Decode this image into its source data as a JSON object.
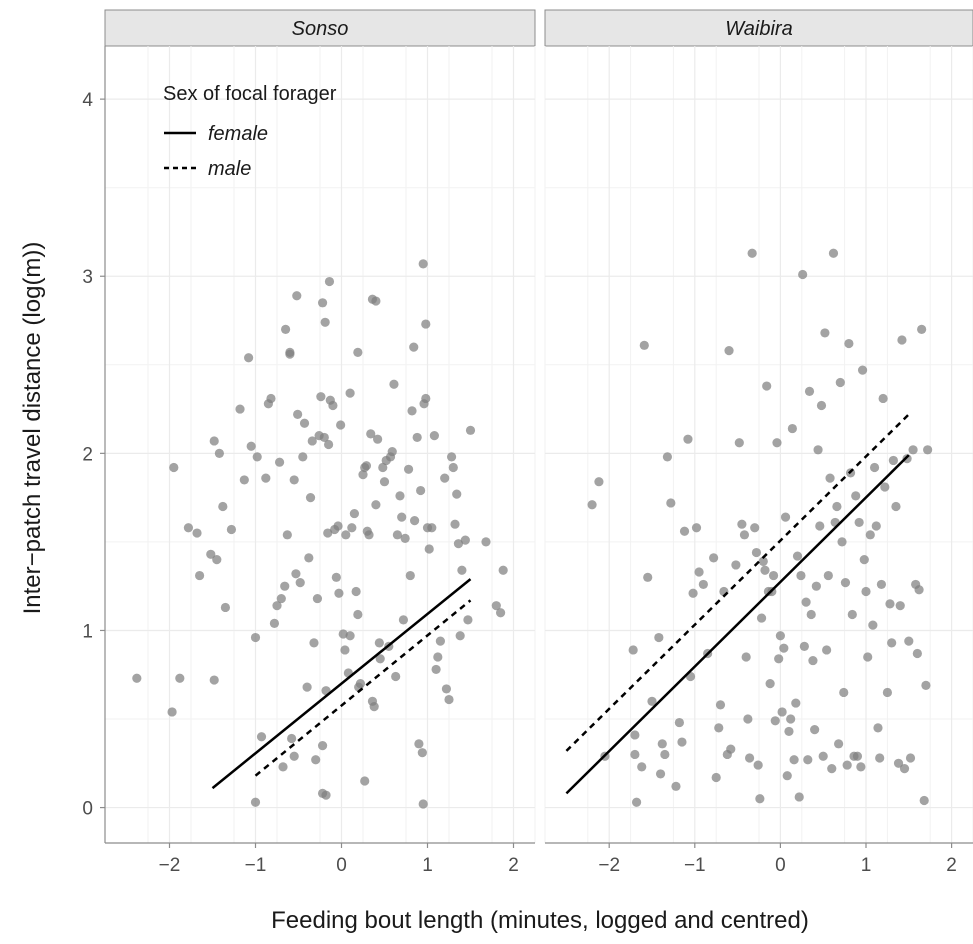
{
  "chart_data": {
    "type": "scatter",
    "xlabel": "Feeding bout length (minutes, logged and centred)",
    "ylabel": "Inter−patch travel distance (log(m))",
    "xlim": [
      -2.75,
      2.25
    ],
    "ylim": [
      -0.2,
      4.3
    ],
    "x_ticks": [
      -2,
      -1,
      0,
      1,
      2
    ],
    "y_ticks": [
      0,
      1,
      2,
      3,
      4
    ],
    "x_tick_labels": [
      "−2",
      "−1",
      "0",
      "1",
      "2"
    ],
    "y_tick_labels": [
      "0",
      "1",
      "2",
      "3",
      "4"
    ],
    "point_color": "#7f7f7f",
    "legend": {
      "title": "Sex of focal forager",
      "placement": "top-left",
      "items": [
        {
          "label": "female",
          "linetype": "solid"
        },
        {
          "label": "male",
          "linetype": "dashed"
        }
      ]
    },
    "panels": [
      {
        "name": "Sonso",
        "lines": [
          {
            "sex": "female",
            "x": [
              -1.5,
              1.5
            ],
            "y": [
              0.11,
              1.29
            ]
          },
          {
            "sex": "male",
            "x": [
              -1.0,
              1.5
            ],
            "y": [
              0.18,
              1.17
            ]
          }
        ],
        "points": [
          [
            -2.38,
            0.73
          ],
          [
            -1.97,
            0.54
          ],
          [
            -1.88,
            0.73
          ],
          [
            -1.95,
            1.92
          ],
          [
            -1.78,
            1.58
          ],
          [
            -1.68,
            1.55
          ],
          [
            -1.65,
            1.31
          ],
          [
            -1.52,
            1.43
          ],
          [
            -1.48,
            0.72
          ],
          [
            -1.48,
            2.07
          ],
          [
            -1.45,
            1.4
          ],
          [
            -1.42,
            2.0
          ],
          [
            -1.38,
            1.7
          ],
          [
            -1.35,
            1.13
          ],
          [
            -1.28,
            1.57
          ],
          [
            -1.18,
            2.25
          ],
          [
            -1.13,
            1.85
          ],
          [
            -1.08,
            2.54
          ],
          [
            -1.05,
            2.04
          ],
          [
            -1.0,
            0.96
          ],
          [
            -0.98,
            1.98
          ],
          [
            -0.93,
            0.4
          ],
          [
            -0.88,
            1.86
          ],
          [
            -0.85,
            2.28
          ],
          [
            -0.82,
            2.31
          ],
          [
            -0.78,
            1.04
          ],
          [
            -0.75,
            1.14
          ],
          [
            -0.72,
            1.95
          ],
          [
            -0.7,
            1.18
          ],
          [
            -0.68,
            0.23
          ],
          [
            -0.66,
            1.25
          ],
          [
            -0.63,
            1.54
          ],
          [
            -0.6,
            2.57
          ],
          [
            -0.58,
            0.39
          ],
          [
            -0.55,
            0.29
          ],
          [
            -0.55,
            1.85
          ],
          [
            -0.53,
            1.32
          ],
          [
            -0.51,
            2.22
          ],
          [
            -0.48,
            1.27
          ],
          [
            -0.45,
            1.98
          ],
          [
            -0.43,
            2.17
          ],
          [
            -0.4,
            0.68
          ],
          [
            -0.38,
            1.41
          ],
          [
            -0.36,
            1.75
          ],
          [
            -0.34,
            2.07
          ],
          [
            -0.32,
            0.93
          ],
          [
            -0.3,
            0.27
          ],
          [
            -0.28,
            1.18
          ],
          [
            -0.26,
            2.1
          ],
          [
            -0.24,
            2.32
          ],
          [
            -0.22,
            0.35
          ],
          [
            -0.22,
            0.08
          ],
          [
            -0.2,
            2.09
          ],
          [
            -0.18,
            0.66
          ],
          [
            -0.16,
            1.55
          ],
          [
            -0.15,
            2.05
          ],
          [
            -0.13,
            2.3
          ],
          [
            -0.1,
            2.27
          ],
          [
            -0.08,
            1.57
          ],
          [
            -0.06,
            1.3
          ],
          [
            -0.04,
            1.59
          ],
          [
            -0.03,
            1.21
          ],
          [
            -0.01,
            2.16
          ],
          [
            0.02,
            0.98
          ],
          [
            0.04,
            0.89
          ],
          [
            0.05,
            1.54
          ],
          [
            0.08,
            0.76
          ],
          [
            0.1,
            0.97
          ],
          [
            0.1,
            2.34
          ],
          [
            0.12,
            1.58
          ],
          [
            0.15,
            1.66
          ],
          [
            0.17,
            1.22
          ],
          [
            0.19,
            1.09
          ],
          [
            0.2,
            0.68
          ],
          [
            0.22,
            0.7
          ],
          [
            0.25,
            1.88
          ],
          [
            0.27,
            1.92
          ],
          [
            0.29,
            1.93
          ],
          [
            0.3,
            1.56
          ],
          [
            0.32,
            1.54
          ],
          [
            0.34,
            2.11
          ],
          [
            0.36,
            0.6
          ],
          [
            0.38,
            0.57
          ],
          [
            0.4,
            1.71
          ],
          [
            0.42,
            2.08
          ],
          [
            0.44,
            0.93
          ],
          [
            0.45,
            0.84
          ],
          [
            0.48,
            1.92
          ],
          [
            0.5,
            1.84
          ],
          [
            0.52,
            1.96
          ],
          [
            0.55,
            0.91
          ],
          [
            0.57,
            1.98
          ],
          [
            0.59,
            2.01
          ],
          [
            0.61,
            2.39
          ],
          [
            0.63,
            0.74
          ],
          [
            0.65,
            1.54
          ],
          [
            0.68,
            1.76
          ],
          [
            0.7,
            1.64
          ],
          [
            0.72,
            1.06
          ],
          [
            0.74,
            1.52
          ],
          [
            0.78,
            1.91
          ],
          [
            0.8,
            1.31
          ],
          [
            0.82,
            2.24
          ],
          [
            0.85,
            1.62
          ],
          [
            0.88,
            2.09
          ],
          [
            0.9,
            0.36
          ],
          [
            0.92,
            1.79
          ],
          [
            0.94,
            0.31
          ],
          [
            0.96,
            2.28
          ],
          [
            0.98,
            2.31
          ],
          [
            1.0,
            1.58
          ],
          [
            1.02,
            1.46
          ],
          [
            1.05,
            1.58
          ],
          [
            1.08,
            2.1
          ],
          [
            1.1,
            0.78
          ],
          [
            1.12,
            0.85
          ],
          [
            1.15,
            0.94
          ],
          [
            1.2,
            1.86
          ],
          [
            1.22,
            0.67
          ],
          [
            1.25,
            0.61
          ],
          [
            1.28,
            1.98
          ],
          [
            1.3,
            1.92
          ],
          [
            1.32,
            1.6
          ],
          [
            1.34,
            1.77
          ],
          [
            1.36,
            1.49
          ],
          [
            1.38,
            0.97
          ],
          [
            1.4,
            1.34
          ],
          [
            1.44,
            1.51
          ],
          [
            1.47,
            1.06
          ],
          [
            1.5,
            2.13
          ],
          [
            1.68,
            1.5
          ],
          [
            1.8,
            1.14
          ],
          [
            1.85,
            1.1
          ],
          [
            1.88,
            1.34
          ],
          [
            -0.52,
            2.89
          ],
          [
            -0.22,
            2.85
          ],
          [
            -0.19,
            2.74
          ],
          [
            -0.14,
            2.97
          ],
          [
            0.36,
            2.87
          ],
          [
            0.4,
            2.86
          ],
          [
            0.95,
            3.07
          ],
          [
            0.98,
            2.73
          ],
          [
            0.84,
            2.6
          ],
          [
            0.19,
            2.57
          ],
          [
            -0.65,
            2.7
          ],
          [
            -0.6,
            2.56
          ],
          [
            -1.0,
            0.03
          ],
          [
            0.95,
            0.02
          ],
          [
            0.27,
            0.15
          ],
          [
            -0.18,
            0.07
          ]
        ]
      },
      {
        "name": "Waibira",
        "lines": [
          {
            "sex": "female",
            "x": [
              -2.5,
              1.5
            ],
            "y": [
              0.08,
              1.99
            ]
          },
          {
            "sex": "male",
            "x": [
              -2.5,
              1.5
            ],
            "y": [
              0.32,
              2.22
            ]
          }
        ],
        "points": [
          [
            -2.2,
            1.71
          ],
          [
            -2.12,
            1.84
          ],
          [
            -2.05,
            0.29
          ],
          [
            -1.72,
            0.89
          ],
          [
            -1.7,
            0.41
          ],
          [
            -1.7,
            0.3
          ],
          [
            -1.68,
            0.03
          ],
          [
            -1.62,
            0.23
          ],
          [
            -1.59,
            2.61
          ],
          [
            -1.55,
            1.3
          ],
          [
            -1.5,
            0.6
          ],
          [
            -1.42,
            0.96
          ],
          [
            -1.4,
            0.19
          ],
          [
            -1.38,
            0.36
          ],
          [
            -1.35,
            0.3
          ],
          [
            -1.32,
            1.98
          ],
          [
            -1.28,
            1.72
          ],
          [
            -1.22,
            0.12
          ],
          [
            -1.18,
            0.48
          ],
          [
            -1.15,
            0.37
          ],
          [
            -1.12,
            1.56
          ],
          [
            -1.08,
            2.08
          ],
          [
            -1.05,
            0.74
          ],
          [
            -1.02,
            1.21
          ],
          [
            -0.98,
            1.58
          ],
          [
            -0.95,
            1.33
          ],
          [
            -0.9,
            1.26
          ],
          [
            -0.85,
            0.87
          ],
          [
            -0.78,
            1.41
          ],
          [
            -0.75,
            0.17
          ],
          [
            -0.72,
            0.45
          ],
          [
            -0.7,
            0.58
          ],
          [
            -0.66,
            1.22
          ],
          [
            -0.62,
            0.3
          ],
          [
            -0.6,
            2.58
          ],
          [
            -0.58,
            0.33
          ],
          [
            -0.52,
            1.37
          ],
          [
            -0.48,
            2.06
          ],
          [
            -0.45,
            1.6
          ],
          [
            -0.42,
            1.54
          ],
          [
            -0.4,
            0.85
          ],
          [
            -0.38,
            0.5
          ],
          [
            -0.36,
            0.28
          ],
          [
            -0.33,
            3.13
          ],
          [
            -0.3,
            1.58
          ],
          [
            -0.28,
            1.44
          ],
          [
            -0.26,
            0.24
          ],
          [
            -0.24,
            0.05
          ],
          [
            -0.22,
            1.07
          ],
          [
            -0.2,
            1.39
          ],
          [
            -0.18,
            1.34
          ],
          [
            -0.16,
            2.38
          ],
          [
            -0.14,
            1.22
          ],
          [
            -0.12,
            0.7
          ],
          [
            -0.1,
            1.22
          ],
          [
            -0.08,
            1.31
          ],
          [
            -0.06,
            0.49
          ],
          [
            -0.04,
            2.06
          ],
          [
            -0.02,
            0.84
          ],
          [
            0.0,
            0.97
          ],
          [
            0.02,
            0.54
          ],
          [
            0.04,
            0.9
          ],
          [
            0.06,
            1.64
          ],
          [
            0.08,
            0.18
          ],
          [
            0.1,
            0.43
          ],
          [
            0.12,
            0.5
          ],
          [
            0.14,
            2.14
          ],
          [
            0.16,
            0.27
          ],
          [
            0.18,
            0.59
          ],
          [
            0.2,
            1.42
          ],
          [
            0.22,
            0.06
          ],
          [
            0.24,
            1.31
          ],
          [
            0.26,
            3.01
          ],
          [
            0.28,
            0.91
          ],
          [
            0.3,
            1.16
          ],
          [
            0.32,
            0.27
          ],
          [
            0.34,
            2.35
          ],
          [
            0.36,
            1.09
          ],
          [
            0.38,
            0.83
          ],
          [
            0.4,
            0.44
          ],
          [
            0.42,
            1.25
          ],
          [
            0.44,
            2.02
          ],
          [
            0.46,
            1.59
          ],
          [
            0.48,
            2.27
          ],
          [
            0.5,
            0.29
          ],
          [
            0.52,
            2.68
          ],
          [
            0.54,
            0.89
          ],
          [
            0.56,
            1.31
          ],
          [
            0.58,
            1.86
          ],
          [
            0.6,
            0.22
          ],
          [
            0.62,
            3.13
          ],
          [
            0.64,
            1.61
          ],
          [
            0.66,
            1.7
          ],
          [
            0.68,
            0.36
          ],
          [
            0.7,
            2.4
          ],
          [
            0.72,
            1.5
          ],
          [
            0.74,
            0.65
          ],
          [
            0.76,
            1.27
          ],
          [
            0.78,
            0.24
          ],
          [
            0.8,
            2.62
          ],
          [
            0.82,
            1.89
          ],
          [
            0.84,
            1.09
          ],
          [
            0.86,
            0.29
          ],
          [
            0.88,
            1.76
          ],
          [
            0.9,
            0.29
          ],
          [
            0.92,
            1.61
          ],
          [
            0.94,
            0.23
          ],
          [
            0.96,
            2.47
          ],
          [
            0.98,
            1.4
          ],
          [
            1.0,
            1.22
          ],
          [
            1.02,
            0.85
          ],
          [
            1.05,
            1.54
          ],
          [
            1.08,
            1.03
          ],
          [
            1.1,
            1.92
          ],
          [
            1.12,
            1.59
          ],
          [
            1.14,
            0.45
          ],
          [
            1.16,
            0.28
          ],
          [
            1.18,
            1.26
          ],
          [
            1.2,
            2.31
          ],
          [
            1.22,
            1.81
          ],
          [
            1.25,
            0.65
          ],
          [
            1.28,
            1.15
          ],
          [
            1.3,
            0.93
          ],
          [
            1.32,
            1.96
          ],
          [
            1.35,
            1.7
          ],
          [
            1.38,
            0.25
          ],
          [
            1.4,
            1.14
          ],
          [
            1.42,
            2.64
          ],
          [
            1.45,
            0.22
          ],
          [
            1.48,
            1.97
          ],
          [
            1.5,
            0.94
          ],
          [
            1.52,
            0.28
          ],
          [
            1.55,
            2.02
          ],
          [
            1.58,
            1.26
          ],
          [
            1.6,
            0.87
          ],
          [
            1.62,
            1.23
          ],
          [
            1.65,
            2.7
          ],
          [
            1.68,
            0.04
          ],
          [
            1.7,
            0.69
          ],
          [
            1.72,
            2.02
          ]
        ]
      }
    ]
  }
}
